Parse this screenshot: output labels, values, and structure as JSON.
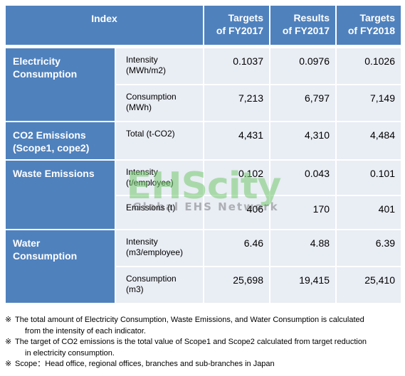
{
  "header": {
    "index": "Index",
    "col1": [
      "Targets",
      "of FY2017"
    ],
    "col2": [
      "Results",
      "of FY2017"
    ],
    "col3": [
      "Targets",
      "of FY2018"
    ]
  },
  "rows": [
    {
      "category": [
        "Electricity",
        "Consumption"
      ],
      "subrows": [
        {
          "label": [
            "Intensity",
            "(MWh/m2)"
          ],
          "values": [
            "0.1037",
            "0.0976",
            "0.1026"
          ]
        },
        {
          "label": [
            "Consumption",
            "(MWh)"
          ],
          "values": [
            "7,213",
            "6,797",
            "7,149"
          ]
        }
      ]
    },
    {
      "category": [
        "CO2 Emissions",
        "(Scope1, cope2)"
      ],
      "subrows": [
        {
          "label": [
            "Total (t-CO2)"
          ],
          "values": [
            "4,431",
            "4,310",
            "4,484"
          ]
        }
      ]
    },
    {
      "category": [
        "Waste Emissions"
      ],
      "subrows": [
        {
          "label": [
            "Intensity",
            "(t/employee)"
          ],
          "values": [
            "0.102",
            "0.043",
            "0.101"
          ]
        },
        {
          "label": [
            "Emissions (t)"
          ],
          "values": [
            "406",
            "170",
            "401"
          ]
        }
      ]
    },
    {
      "category": [
        "Water",
        "Consumption"
      ],
      "subrows": [
        {
          "label": [
            "Intensity",
            "(m3/employee)"
          ],
          "values": [
            "6.46",
            "4.88",
            "6.39"
          ]
        },
        {
          "label": [
            "Consumption",
            "(m3)"
          ],
          "values": [
            "25,698",
            "19,415",
            "25,410"
          ]
        }
      ]
    }
  ],
  "watermark": {
    "big": "EHScity",
    "small": "Global EHS Network"
  },
  "notes": [
    {
      "mark": "※",
      "lines": [
        "The total amount of Electricity Consumption, Waste Emissions, and Water Consumption is calculated",
        "from the intensity of each indicator."
      ]
    },
    {
      "mark": "※",
      "lines": [
        "The target of CO2 emissions is the total value of Scope1 and Scope2 calculated from target reduction",
        "in electricity consumption."
      ]
    },
    {
      "mark": "※",
      "lines": [
        "Scope：Head office, regional offices, branches and sub-branches in Japan"
      ]
    }
  ]
}
